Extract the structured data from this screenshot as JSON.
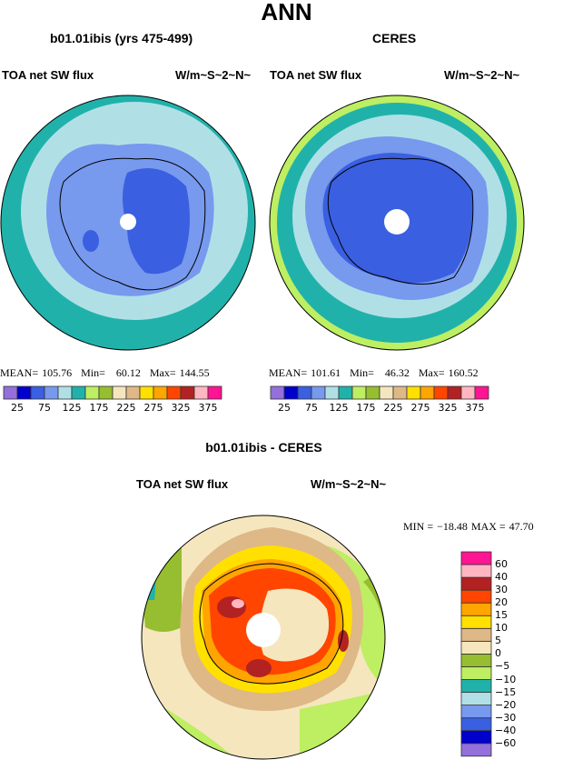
{
  "title": "ANN",
  "panels": [
    {
      "title": "b01.01ibis (yrs 475-499)",
      "variable": "TOA net SW flux",
      "units": "W/m~S~2~N~",
      "stats": {
        "mean_label": "MEAN=",
        "mean": "105.76",
        "min_label": "Min=",
        "min": "60.12",
        "max_label": "Max=",
        "max": "144.55"
      }
    },
    {
      "title": "CERES",
      "variable": "TOA net SW flux",
      "units": "W/m~S~2~N~",
      "stats": {
        "mean_label": "MEAN=",
        "mean": "101.61",
        "min_label": "Min=",
        "min": "46.32",
        "max_label": "Max=",
        "max": "160.52"
      }
    },
    {
      "title": "b01.01ibis - CERES",
      "variable": "TOA net SW flux",
      "units": "W/m~S~2~N~",
      "stats": {
        "min_label": "MIN =",
        "min": "−18.48",
        "max_label": "MAX =",
        "max": "47.70"
      }
    }
  ],
  "chart_data": [
    {
      "type": "heatmap",
      "name": "model colorbar",
      "levels": [
        25,
        50,
        75,
        100,
        125,
        150,
        175,
        200,
        225,
        250,
        275,
        300,
        325,
        350
      ],
      "tick_labels": [
        "25",
        "75",
        "125",
        "175",
        "225",
        "275",
        "325",
        "375"
      ],
      "colors": [
        "#9370DB",
        "#0000CD",
        "#3A5FE0",
        "#7799EE",
        "#B0E0E6",
        "#20B2AA",
        "#BEEE62",
        "#96BE30",
        "#F5E6BE",
        "#DEB887",
        "#FFE000",
        "#FFA500",
        "#FF4500",
        "#B22222",
        "#FFB6C1",
        "#FF1493"
      ]
    },
    {
      "type": "heatmap",
      "name": "obs colorbar",
      "tick_labels": [
        "25",
        "75",
        "125",
        "175",
        "225",
        "275",
        "325",
        "375"
      ]
    },
    {
      "type": "heatmap",
      "name": "difference colorbar",
      "levels": [
        "−60",
        "−40",
        "−30",
        "−20",
        "−15",
        "−10",
        "−5",
        "0",
        "5",
        "10",
        "15",
        "20",
        "30",
        "40",
        "60"
      ],
      "colors": [
        "#9370DB",
        "#0000CD",
        "#3A5FE0",
        "#7799EE",
        "#B0E0E6",
        "#20B2AA",
        "#BEEE62",
        "#96BE30",
        "#F5E6BE",
        "#DEB887",
        "#FFE000",
        "#FFA500",
        "#FF4500",
        "#B22222",
        "#FFB6C1",
        "#FF1493"
      ]
    }
  ]
}
